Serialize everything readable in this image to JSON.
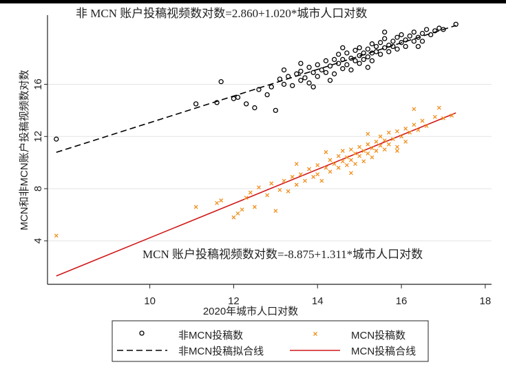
{
  "chart_data": {
    "type": "scatter",
    "xlabel": "2020年城市人口对数",
    "ylabel": "MCN和非MCN账户投稿视频数对数",
    "xlim": [
      7.56,
      18.15
    ],
    "ylim": [
      0.67,
      21.3
    ],
    "xticks": [
      10,
      12,
      14,
      16,
      18
    ],
    "yticks": [
      4,
      8,
      12,
      16
    ],
    "grid": "horizontal",
    "annotations": {
      "non_mcn_equation": "非 MCN 账户投稿视频数对数=2.860+1.020*城市人口对数",
      "mcn_equation": "MCN 账户投稿视频数对数=-8.875+1.311*城市人口对数"
    },
    "legend": {
      "placement": "bottom",
      "entries": [
        "非MCN投稿数",
        "MCN投稿数",
        "非MCN投稿拟合线",
        "MCN投稿合线"
      ]
    },
    "colors": {
      "non_mcn": "#000000",
      "mcn": "#f0901e",
      "mcn_fit": "#d01818",
      "grid": "#e3e3e3"
    },
    "fits": [
      {
        "name": "非MCN投稿拟合线",
        "intercept": 2.86,
        "slope": 1.02,
        "x_range": [
          7.77,
          17.3
        ],
        "style": "dashed"
      },
      {
        "name": "MCN投稿合线",
        "intercept": -8.875,
        "slope": 1.311,
        "x_range": [
          7.77,
          17.3
        ],
        "style": "solid"
      }
    ],
    "series": [
      {
        "name": "非MCN投稿数",
        "marker": "circle",
        "points": [
          [
            7.77,
            11.8
          ],
          [
            11.1,
            14.5
          ],
          [
            11.6,
            14.6
          ],
          [
            11.7,
            16.2
          ],
          [
            12.0,
            14.9
          ],
          [
            12.1,
            15.0
          ],
          [
            12.3,
            14.5
          ],
          [
            12.5,
            14.2
          ],
          [
            12.6,
            15.6
          ],
          [
            12.8,
            15.2
          ],
          [
            13.0,
            14.0
          ],
          [
            13.1,
            16.4
          ],
          [
            13.2,
            17.1
          ],
          [
            12.9,
            15.8
          ],
          [
            13.2,
            16.0
          ],
          [
            13.3,
            16.6
          ],
          [
            13.4,
            15.9
          ],
          [
            13.5,
            16.8
          ],
          [
            13.6,
            16.3
          ],
          [
            13.6,
            17.0
          ],
          [
            13.7,
            16.5
          ],
          [
            13.8,
            17.3
          ],
          [
            13.8,
            16.1
          ],
          [
            13.9,
            16.9
          ],
          [
            14.0,
            17.5
          ],
          [
            14.0,
            16.6
          ],
          [
            14.1,
            17.1
          ],
          [
            14.2,
            17.8
          ],
          [
            14.2,
            16.9
          ],
          [
            14.3,
            17.4
          ],
          [
            14.4,
            17.9
          ],
          [
            14.4,
            16.8
          ],
          [
            14.5,
            17.6
          ],
          [
            14.5,
            18.3
          ],
          [
            14.6,
            17.2
          ],
          [
            14.6,
            17.9
          ],
          [
            14.7,
            18.4
          ],
          [
            14.7,
            17.5
          ],
          [
            14.8,
            18.0
          ],
          [
            14.8,
            17.1
          ],
          [
            14.9,
            18.6
          ],
          [
            14.9,
            17.8
          ],
          [
            15.0,
            18.2
          ],
          [
            15.0,
            17.6
          ],
          [
            15.0,
            18.8
          ],
          [
            15.1,
            18.4
          ],
          [
            15.1,
            17.9
          ],
          [
            15.2,
            18.7
          ],
          [
            15.2,
            18.1
          ],
          [
            15.3,
            19.1
          ],
          [
            15.3,
            18.4
          ],
          [
            15.3,
            17.8
          ],
          [
            15.4,
            18.9
          ],
          [
            15.4,
            18.5
          ],
          [
            15.5,
            19.2
          ],
          [
            15.5,
            18.3
          ],
          [
            15.6,
            18.8
          ],
          [
            15.6,
            19.5
          ],
          [
            15.7,
            19.0
          ],
          [
            15.7,
            18.5
          ],
          [
            15.8,
            19.3
          ],
          [
            15.8,
            18.9
          ],
          [
            15.9,
            19.6
          ],
          [
            15.9,
            18.7
          ],
          [
            16.0,
            19.2
          ],
          [
            16.0,
            19.8
          ],
          [
            16.1,
            19.4
          ],
          [
            16.1,
            18.9
          ],
          [
            16.2,
            19.7
          ],
          [
            16.3,
            19.3
          ],
          [
            16.3,
            20.0
          ],
          [
            16.4,
            19.6
          ],
          [
            16.5,
            19.9
          ],
          [
            16.5,
            19.3
          ],
          [
            16.6,
            20.2
          ],
          [
            16.7,
            19.8
          ],
          [
            16.8,
            20.1
          ],
          [
            16.9,
            20.3
          ],
          [
            17.0,
            20.2
          ],
          [
            17.3,
            20.6
          ],
          [
            16.4,
            18.9
          ],
          [
            15.2,
            17.3
          ],
          [
            14.3,
            16.3
          ],
          [
            13.9,
            15.8
          ],
          [
            15.6,
            20.0
          ],
          [
            14.6,
            18.8
          ],
          [
            13.6,
            17.6
          ]
        ]
      },
      {
        "name": "MCN投稿数",
        "marker": "x",
        "points": [
          [
            7.77,
            4.4
          ],
          [
            11.1,
            6.6
          ],
          [
            11.6,
            6.9
          ],
          [
            11.7,
            7.1
          ],
          [
            12.0,
            5.8
          ],
          [
            12.1,
            6.1
          ],
          [
            12.2,
            6.4
          ],
          [
            12.3,
            7.3
          ],
          [
            12.4,
            7.7
          ],
          [
            12.5,
            6.6
          ],
          [
            12.6,
            8.1
          ],
          [
            12.8,
            7.5
          ],
          [
            12.9,
            8.4
          ],
          [
            13.0,
            6.3
          ],
          [
            13.1,
            7.9
          ],
          [
            13.2,
            8.6
          ],
          [
            13.3,
            7.8
          ],
          [
            13.4,
            8.9
          ],
          [
            13.5,
            8.3
          ],
          [
            13.6,
            9.1
          ],
          [
            13.7,
            8.6
          ],
          [
            13.8,
            9.5
          ],
          [
            13.9,
            8.9
          ],
          [
            14.0,
            9.8
          ],
          [
            14.0,
            9.1
          ],
          [
            14.1,
            8.6
          ],
          [
            14.2,
            9.6
          ],
          [
            14.3,
            10.2
          ],
          [
            14.3,
            9.3
          ],
          [
            14.4,
            9.9
          ],
          [
            14.5,
            10.5
          ],
          [
            14.5,
            9.6
          ],
          [
            14.6,
            10.1
          ],
          [
            14.6,
            10.9
          ],
          [
            14.7,
            9.8
          ],
          [
            14.7,
            10.4
          ],
          [
            14.8,
            11.0
          ],
          [
            14.8,
            10.2
          ],
          [
            14.9,
            10.7
          ],
          [
            14.9,
            9.9
          ],
          [
            15.0,
            11.2
          ],
          [
            15.0,
            10.5
          ],
          [
            15.1,
            10.9
          ],
          [
            15.1,
            10.1
          ],
          [
            15.2,
            11.4
          ],
          [
            15.2,
            10.7
          ],
          [
            15.3,
            11.1
          ],
          [
            15.3,
            10.4
          ],
          [
            15.4,
            11.6
          ],
          [
            15.4,
            10.9
          ],
          [
            15.5,
            11.3
          ],
          [
            15.5,
            12.0
          ],
          [
            15.6,
            11.0
          ],
          [
            15.6,
            11.7
          ],
          [
            15.7,
            11.4
          ],
          [
            15.7,
            12.3
          ],
          [
            15.8,
            11.8
          ],
          [
            15.9,
            11.2
          ],
          [
            15.9,
            12.4
          ],
          [
            16.0,
            12.0
          ],
          [
            16.1,
            12.6
          ],
          [
            16.1,
            11.6
          ],
          [
            16.2,
            12.3
          ],
          [
            16.3,
            12.9
          ],
          [
            16.4,
            12.5
          ],
          [
            16.5,
            13.2
          ],
          [
            16.6,
            12.8
          ],
          [
            16.8,
            13.5
          ],
          [
            16.9,
            14.2
          ],
          [
            17.0,
            13.4
          ],
          [
            17.2,
            13.6
          ],
          [
            16.3,
            14.1
          ],
          [
            15.2,
            12.2
          ],
          [
            14.2,
            10.8
          ],
          [
            13.5,
            9.9
          ],
          [
            14.8,
            9.2
          ],
          [
            15.9,
            10.9
          ]
        ]
      }
    ]
  }
}
